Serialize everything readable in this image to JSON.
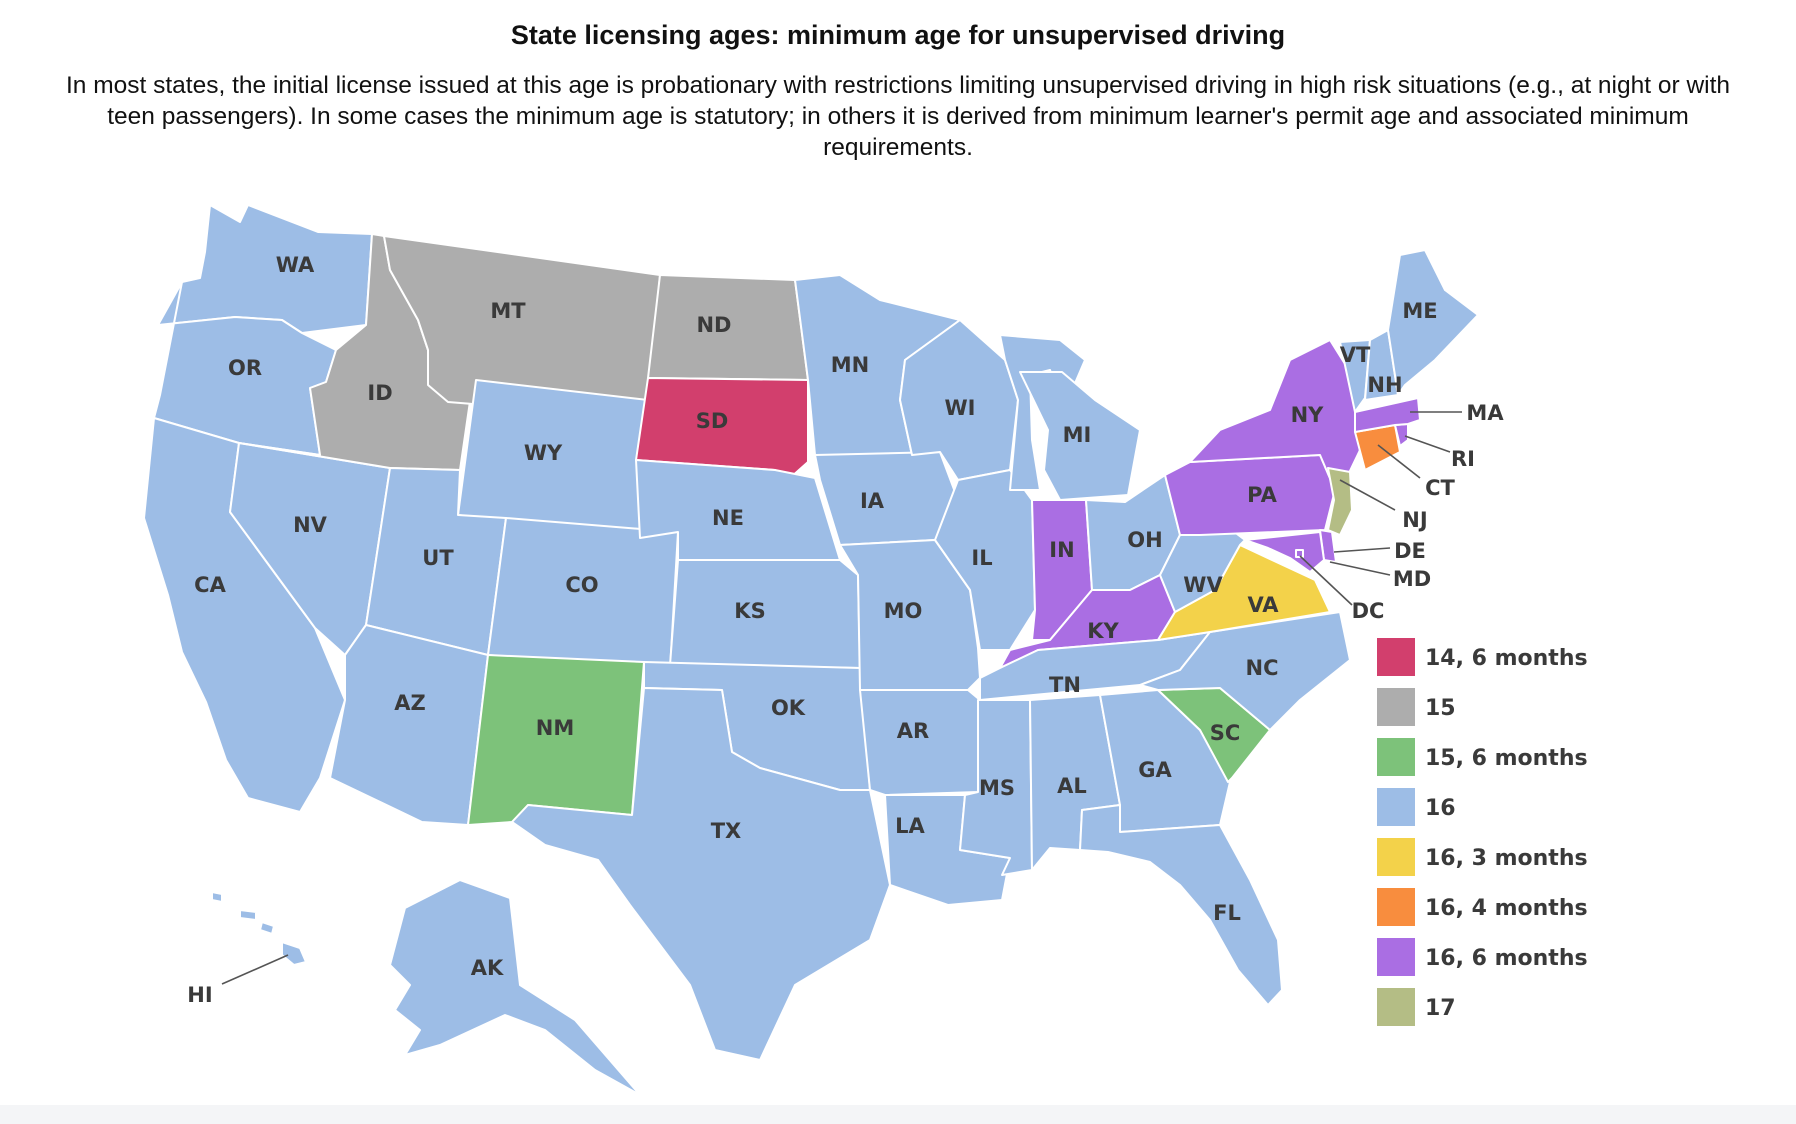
{
  "title": "State licensing ages: minimum age for unsupervised driving",
  "subtitle": "In most states, the initial license issued at this age is probationary with restrictions limiting unsupervised driving in high risk situations (e.g., at night or with teen passengers). In some cases the minimum age is statutory; in others it is derived from minimum learner's permit age and associated minimum requirements.",
  "legend": [
    {
      "label": "14, 6 months",
      "color": "#d23f6d"
    },
    {
      "label": "15",
      "color": "#adadad"
    },
    {
      "label": "15, 6 months",
      "color": "#7dc27a"
    },
    {
      "label": "16",
      "color": "#9dbde6"
    },
    {
      "label": "16, 3 months",
      "color": "#f3d24a"
    },
    {
      "label": "16, 4 months",
      "color": "#f88d3e"
    },
    {
      "label": "16, 6 months",
      "color": "#aa6ee3"
    },
    {
      "label": "17",
      "color": "#b4bd85"
    }
  ],
  "states": {
    "WA": "16",
    "OR": "16",
    "CA": "16",
    "NV": "16",
    "ID": "15",
    "MT": "15",
    "WY": "16",
    "UT": "16",
    "AZ": "16",
    "CO": "16",
    "NM": "15, 6 months",
    "ND": "15",
    "SD": "14, 6 months",
    "NE": "16",
    "KS": "16",
    "OK": "16",
    "TX": "16",
    "MN": "16",
    "IA": "16",
    "MO": "16",
    "AR": "16",
    "LA": "16",
    "WI": "16",
    "IL": "16",
    "MI": "16",
    "IN": "16, 6 months",
    "OH": "16",
    "KY": "16, 6 months",
    "TN": "16",
    "MS": "16",
    "AL": "16",
    "GA": "16",
    "FL": "16",
    "SC": "15, 6 months",
    "NC": "16",
    "VA": "16, 3 months",
    "WV": "16",
    "PA": "16, 6 months",
    "NY": "16, 6 months",
    "NJ": "17",
    "DE": "16, 6 months",
    "MD": "16, 6 months",
    "DC": "16, 6 months",
    "CT": "16, 4 months",
    "RI": "16, 6 months",
    "MA": "16, 6 months",
    "VT": "16",
    "NH": "16",
    "ME": "16",
    "AK": "16",
    "HI": "16"
  }
}
